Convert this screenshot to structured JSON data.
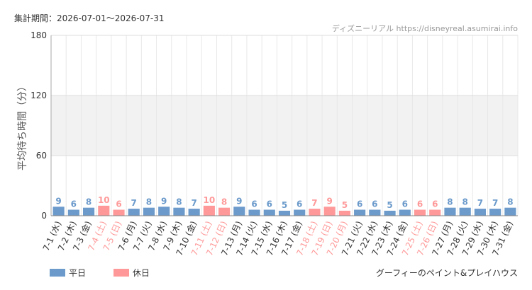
{
  "chart_data": {
    "type": "bar",
    "period": "集計期間：2026-07-01～2026-07-31",
    "source": "ディズニーリアル https://disneyreal.asumirai.info",
    "y_label": "平均待ち時間（分）",
    "attraction": "グーフィーのペイント&プレイハウス",
    "categories": [
      "7-1 (水)",
      "7-2 (木)",
      "7-3 (金)",
      "7-4 (土)",
      "7-5 (日)",
      "7-6 (月)",
      "7-7 (火)",
      "7-8 (水)",
      "7-9 (木)",
      "7-10 (金)",
      "7-11 (土)",
      "7-12 (日)",
      "7-13 (月)",
      "7-14 (火)",
      "7-15 (水)",
      "7-16 (木)",
      "7-17 (金)",
      "7-18 (土)",
      "7-19 (日)",
      "7-20 (月)",
      "7-21 (火)",
      "7-22 (水)",
      "7-23 (木)",
      "7-24 (金)",
      "7-25 (土)",
      "7-26 (日)",
      "7-27 (月)",
      "7-28 (火)",
      "7-29 (水)",
      "7-30 (木)",
      "7-31 (金)"
    ],
    "series": [
      {
        "name": "平日",
        "color": "#6b9acb",
        "values": [
          9,
          6,
          8,
          null,
          null,
          7,
          8,
          9,
          8,
          7,
          null,
          null,
          9,
          6,
          6,
          5,
          6,
          null,
          null,
          null,
          6,
          6,
          5,
          6,
          null,
          null,
          8,
          8,
          7,
          7,
          8
        ]
      },
      {
        "name": "休日",
        "color": "#ff9999",
        "values": [
          null,
          null,
          null,
          10,
          6,
          null,
          null,
          null,
          null,
          null,
          10,
          8,
          null,
          null,
          null,
          null,
          null,
          7,
          9,
          5,
          null,
          null,
          null,
          null,
          6,
          6,
          null,
          null,
          null,
          null,
          null
        ]
      }
    ],
    "ylim": [
      0,
      180
    ],
    "yticks": [
      0,
      60,
      120,
      180
    ],
    "shaded_range": [
      60,
      120
    ],
    "grid": true
  }
}
